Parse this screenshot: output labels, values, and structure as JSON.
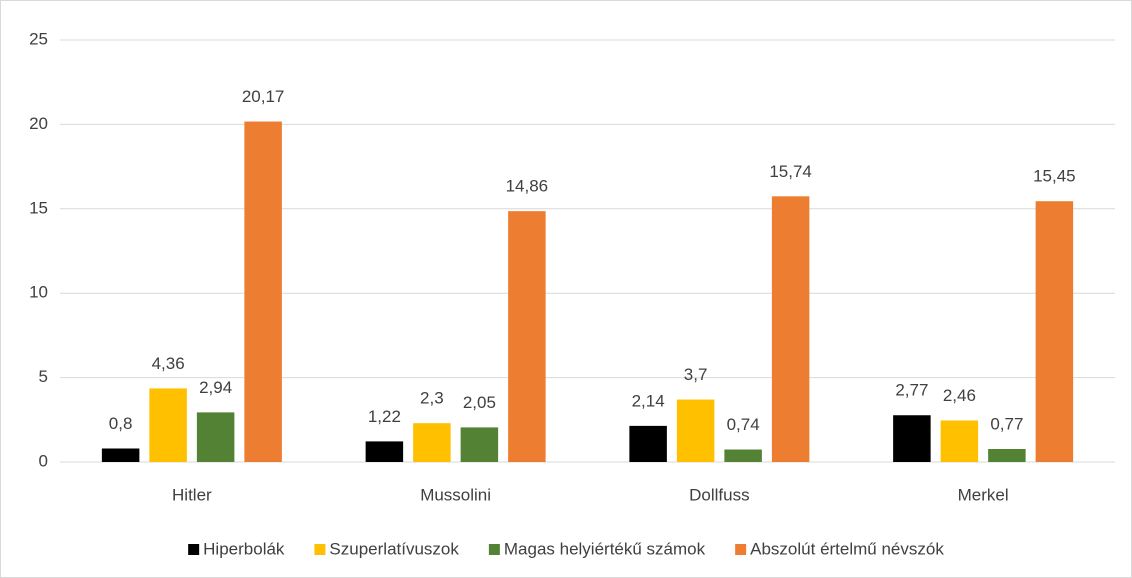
{
  "chart_data": {
    "type": "bar",
    "categories": [
      "Hitler",
      "Mussolini",
      "Dollfuss",
      "Merkel"
    ],
    "series": [
      {
        "name": "Hiperbolák",
        "color": "#000000",
        "values": [
          0.8,
          1.22,
          2.14,
          2.77
        ],
        "value_labels": [
          "0,8",
          "1,22",
          "2,14",
          "2,77"
        ]
      },
      {
        "name": "Szuperlatívuszok",
        "color": "#ffc000",
        "values": [
          4.36,
          2.3,
          3.7,
          2.46
        ],
        "value_labels": [
          "4,36",
          "2,3",
          "3,7",
          "2,46"
        ]
      },
      {
        "name": "Magas helyiértékű számok",
        "color": "#548235",
        "values": [
          2.94,
          2.05,
          0.74,
          0.77
        ],
        "value_labels": [
          "2,94",
          "2,05",
          "0,74",
          "0,77"
        ]
      },
      {
        "name": "Abszolút értelmű névszók",
        "color": "#ed7d31",
        "values": [
          20.17,
          14.86,
          15.74,
          15.45
        ],
        "value_labels": [
          "20,17",
          "14,86",
          "15,74",
          "15,45"
        ]
      }
    ],
    "ylim": [
      0,
      25
    ],
    "yticks": [
      0,
      5,
      10,
      15,
      20,
      25
    ],
    "grid": true,
    "legend": "bottom"
  }
}
